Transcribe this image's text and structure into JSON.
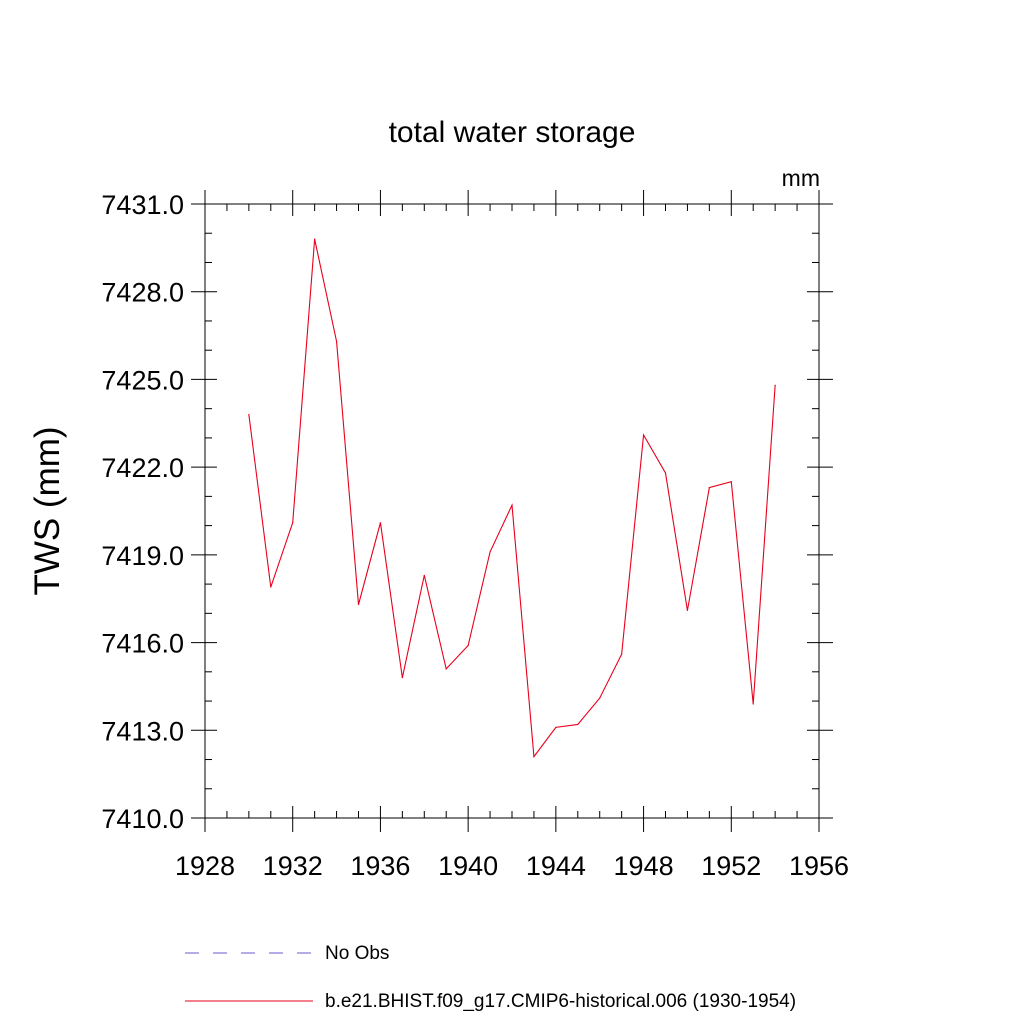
{
  "chart_data": {
    "type": "line",
    "title": "total water storage",
    "units_label": "mm",
    "xlabel": "",
    "ylabel": "TWS  (mm)",
    "xlim": [
      1928,
      1956
    ],
    "ylim": [
      7410.0,
      7431.0
    ],
    "x_ticks": [
      1928,
      1932,
      1936,
      1940,
      1944,
      1948,
      1952,
      1956
    ],
    "x_tick_labels": [
      "1928",
      "1932",
      "1936",
      "1940",
      "1944",
      "1948",
      "1952",
      "1956"
    ],
    "y_ticks": [
      7410.0,
      7413.0,
      7416.0,
      7419.0,
      7422.0,
      7425.0,
      7428.0,
      7431.0
    ],
    "y_tick_labels": [
      "7410.0",
      "7413.0",
      "7416.0",
      "7419.0",
      "7422.0",
      "7425.0",
      "7428.0",
      "7431.0"
    ],
    "x_minor_step": 1,
    "y_minor_step": 1,
    "grid": false,
    "legend_position": "bottom",
    "series": [
      {
        "name": "No Obs",
        "color": "#6a5acd",
        "dash": "dashed",
        "x": [],
        "values": []
      },
      {
        "name": "b.e21.BHIST.f09_g17.CMIP6-historical.006 (1930-1954)",
        "color": "#e8001c",
        "dash": "solid",
        "x": [
          1930,
          1931,
          1932,
          1933,
          1934,
          1935,
          1936,
          1937,
          1938,
          1939,
          1940,
          1941,
          1942,
          1943,
          1944,
          1945,
          1946,
          1947,
          1948,
          1949,
          1950,
          1951,
          1952,
          1953,
          1954
        ],
        "values": [
          7423.8,
          7417.9,
          7420.1,
          7429.8,
          7426.3,
          7417.3,
          7420.1,
          7414.8,
          7418.3,
          7415.1,
          7415.9,
          7419.1,
          7420.7,
          7412.1,
          7413.1,
          7413.2,
          7414.1,
          7415.6,
          7423.1,
          7421.8,
          7417.1,
          7421.3,
          7421.5,
          7413.9,
          7424.8
        ]
      }
    ]
  }
}
